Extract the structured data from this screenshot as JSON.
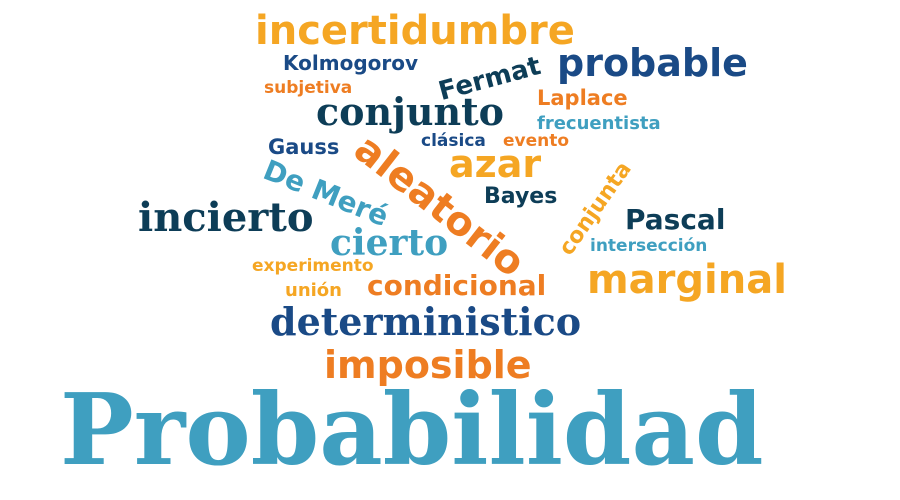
{
  "palette": {
    "background": "#ffffff",
    "light_blue": "#3f9fc0",
    "dark_navy": "#0d3d57",
    "navy": "#1a4a86",
    "orange": "#ee7d22",
    "gold": "#f5a623"
  },
  "words": {
    "incertidumbre": "incertidumbre",
    "kolmogorov": "Kolmogorov",
    "fermat": "Fermat",
    "probable": "probable",
    "subjetiva": "subjetiva",
    "laplace": "Laplace",
    "conjunto": "conjunto",
    "frecuentista": "frecuentista",
    "gauss": "Gauss",
    "clasica": "clásica",
    "evento": "evento",
    "aleatorio": "aleatorio",
    "azar": "azar",
    "de_mere": "De Meré",
    "conjunta": "conjunta",
    "bayes": "Bayes",
    "incierto": "incierto",
    "pascal": "Pascal",
    "cierto": "cierto",
    "interseccion": "intersección",
    "experimento": "experimento",
    "marginal": "marginal",
    "union": "unión",
    "condicional": "condicional",
    "deterministico": "deterministico",
    "imposible": "imposible",
    "probabilidad": "Probabilidad"
  }
}
